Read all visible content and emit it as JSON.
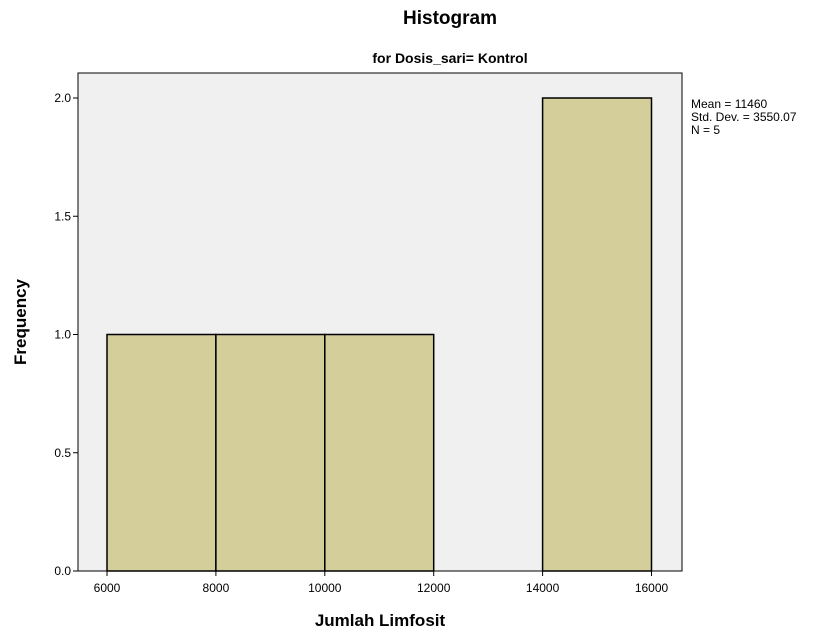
{
  "chart_data": {
    "type": "bar",
    "title": "Histogram",
    "subtitle": "for Dosis_sari= Kontrol",
    "xlabel": "Jumlah Limfosit",
    "ylabel": "Frequency",
    "bins": [
      {
        "x_start": 6000,
        "x_end": 8000,
        "frequency": 1
      },
      {
        "x_start": 8000,
        "x_end": 10000,
        "frequency": 1
      },
      {
        "x_start": 10000,
        "x_end": 12000,
        "frequency": 1
      },
      {
        "x_start": 12000,
        "x_end": 14000,
        "frequency": 0
      },
      {
        "x_start": 14000,
        "x_end": 16000,
        "frequency": 2
      }
    ],
    "xlim": [
      5500,
      16500
    ],
    "ylim": [
      0,
      2.1
    ],
    "x_ticks": [
      "6000",
      "8000",
      "10000",
      "12000",
      "14000",
      "16000"
    ],
    "y_ticks": [
      "0.0",
      "0.5",
      "1.0",
      "1.5",
      "2.0"
    ],
    "grid": false,
    "stats": {
      "mean": "Mean = 11460",
      "std_dev": "Std. Dev. = 3550.07",
      "n": "N = 5"
    },
    "colors": {
      "plot_background": "#f0f0f0",
      "bar_fill": "#d3ce9a",
      "bar_stroke": "#000000"
    }
  }
}
